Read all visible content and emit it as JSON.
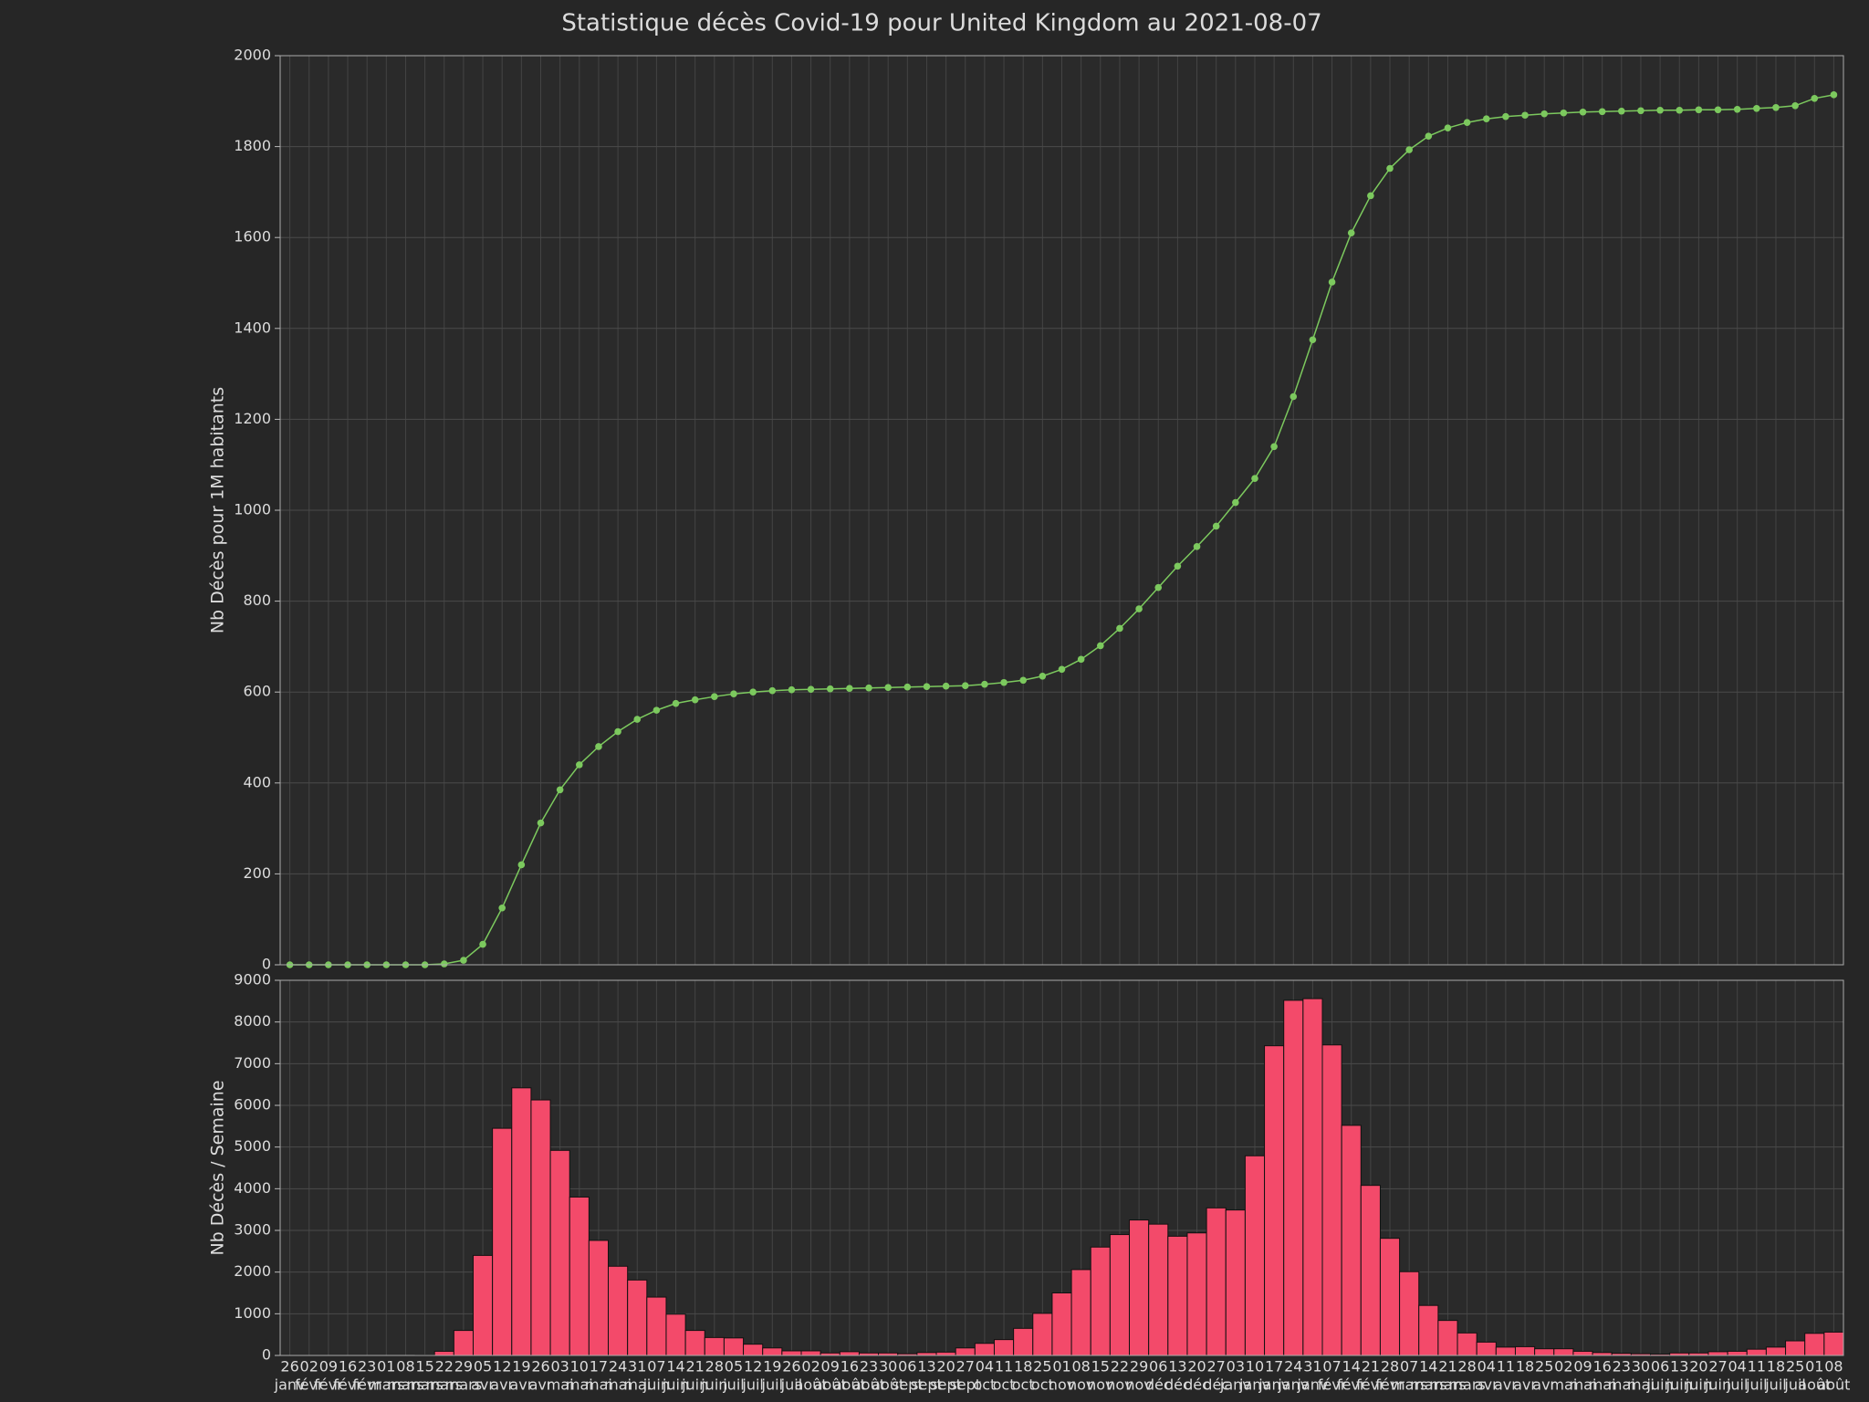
{
  "chart_data": [
    {
      "type": "line",
      "title": "Statistique décès Covid-19 pour United Kingdom au 2021-08-07",
      "y_label": "Nb Décès pour 1M habitants",
      "color": "#7cc95e",
      "ylim": [
        0,
        2000
      ],
      "yticks": [
        0,
        200,
        400,
        600,
        800,
        1000,
        1200,
        1400,
        1600,
        1800,
        2000
      ],
      "grid": true,
      "values": [
        0,
        0,
        0,
        0,
        0,
        0,
        0,
        0,
        2,
        10,
        45,
        125,
        220,
        312,
        385,
        440,
        480,
        513,
        540,
        560,
        575,
        583,
        590,
        596,
        600,
        603,
        605,
        606,
        607,
        608,
        609,
        610,
        611,
        612,
        613,
        614,
        617,
        621,
        626,
        635,
        650,
        672,
        702,
        740,
        783,
        830,
        877,
        920,
        965,
        1017,
        1070,
        1140,
        1250,
        1375,
        1502,
        1610,
        1692,
        1752,
        1793,
        1823,
        1841,
        1853,
        1861,
        1866,
        1869,
        1872,
        1874,
        1876,
        1877,
        1878,
        1879,
        1880,
        1880,
        1881,
        1881,
        1882,
        1884,
        1886,
        1890,
        1906,
        1914
      ]
    },
    {
      "type": "bar",
      "y_label": "Nb Décès / Semaine",
      "color": "#f34a6a",
      "ylim": [
        0,
        9000
      ],
      "yticks": [
        0,
        1000,
        2000,
        3000,
        4000,
        5000,
        6000,
        7000,
        8000,
        9000
      ],
      "grid": true,
      "categories": [
        {
          "day": "26",
          "month": "janv"
        },
        {
          "day": "02",
          "month": "févr"
        },
        {
          "day": "09",
          "month": "févr"
        },
        {
          "day": "16",
          "month": "févr"
        },
        {
          "day": "23",
          "month": "févr"
        },
        {
          "day": "01",
          "month": "mars"
        },
        {
          "day": "08",
          "month": "mars"
        },
        {
          "day": "15",
          "month": "mars"
        },
        {
          "day": "22",
          "month": "mars"
        },
        {
          "day": "29",
          "month": "mars"
        },
        {
          "day": "05",
          "month": "avr"
        },
        {
          "day": "12",
          "month": "avr"
        },
        {
          "day": "19",
          "month": "avr"
        },
        {
          "day": "26",
          "month": "avr"
        },
        {
          "day": "03",
          "month": "mai"
        },
        {
          "day": "10",
          "month": "mai"
        },
        {
          "day": "17",
          "month": "mai"
        },
        {
          "day": "24",
          "month": "mai"
        },
        {
          "day": "31",
          "month": "mai"
        },
        {
          "day": "07",
          "month": "juin"
        },
        {
          "day": "14",
          "month": "juin"
        },
        {
          "day": "21",
          "month": "juin"
        },
        {
          "day": "28",
          "month": "juin"
        },
        {
          "day": "05",
          "month": "juil"
        },
        {
          "day": "12",
          "month": "juil"
        },
        {
          "day": "19",
          "month": "juil"
        },
        {
          "day": "26",
          "month": "juil"
        },
        {
          "day": "02",
          "month": "août"
        },
        {
          "day": "09",
          "month": "août"
        },
        {
          "day": "16",
          "month": "août"
        },
        {
          "day": "23",
          "month": "août"
        },
        {
          "day": "30",
          "month": "août"
        },
        {
          "day": "06",
          "month": "sept"
        },
        {
          "day": "13",
          "month": "sept"
        },
        {
          "day": "20",
          "month": "sept"
        },
        {
          "day": "27",
          "month": "sept"
        },
        {
          "day": "04",
          "month": "oct"
        },
        {
          "day": "11",
          "month": "oct"
        },
        {
          "day": "18",
          "month": "oct"
        },
        {
          "day": "25",
          "month": "oct"
        },
        {
          "day": "01",
          "month": "nov"
        },
        {
          "day": "08",
          "month": "nov"
        },
        {
          "day": "15",
          "month": "nov"
        },
        {
          "day": "22",
          "month": "nov"
        },
        {
          "day": "29",
          "month": "nov"
        },
        {
          "day": "06",
          "month": "déc"
        },
        {
          "day": "13",
          "month": "déc"
        },
        {
          "day": "20",
          "month": "déc"
        },
        {
          "day": "27",
          "month": "déc"
        },
        {
          "day": "03",
          "month": "janv"
        },
        {
          "day": "10",
          "month": "janv"
        },
        {
          "day": "17",
          "month": "janv"
        },
        {
          "day": "24",
          "month": "janv"
        },
        {
          "day": "31",
          "month": "janv"
        },
        {
          "day": "07",
          "month": "févr"
        },
        {
          "day": "14",
          "month": "févr"
        },
        {
          "day": "21",
          "month": "févr"
        },
        {
          "day": "28",
          "month": "févr"
        },
        {
          "day": "07",
          "month": "mars"
        },
        {
          "day": "14",
          "month": "mars"
        },
        {
          "day": "21",
          "month": "mars"
        },
        {
          "day": "28",
          "month": "mars"
        },
        {
          "day": "04",
          "month": "avr"
        },
        {
          "day": "11",
          "month": "avr"
        },
        {
          "day": "18",
          "month": "avr"
        },
        {
          "day": "25",
          "month": "avr"
        },
        {
          "day": "02",
          "month": "mai"
        },
        {
          "day": "09",
          "month": "mai"
        },
        {
          "day": "16",
          "month": "mai"
        },
        {
          "day": "23",
          "month": "mai"
        },
        {
          "day": "30",
          "month": "mai"
        },
        {
          "day": "06",
          "month": "juin"
        },
        {
          "day": "13",
          "month": "juin"
        },
        {
          "day": "20",
          "month": "juin"
        },
        {
          "day": "27",
          "month": "juin"
        },
        {
          "day": "04",
          "month": "juil"
        },
        {
          "day": "11",
          "month": "juil"
        },
        {
          "day": "18",
          "month": "juil"
        },
        {
          "day": "25",
          "month": "juil"
        },
        {
          "day": "01",
          "month": "août"
        },
        {
          "day": "08",
          "month": "août"
        }
      ],
      "values": [
        0,
        0,
        0,
        0,
        0,
        0,
        0,
        10,
        100,
        600,
        2400,
        5450,
        6420,
        6130,
        4920,
        3800,
        2760,
        2140,
        1810,
        1400,
        990,
        600,
        430,
        420,
        270,
        180,
        110,
        110,
        60,
        90,
        60,
        60,
        40,
        70,
        80,
        180,
        290,
        380,
        650,
        1010,
        1500,
        2060,
        2600,
        2900,
        3250,
        3150,
        2860,
        2940,
        3540,
        3490,
        4790,
        7430,
        8520,
        8560,
        7450,
        5520,
        4080,
        2810,
        2010,
        1200,
        840,
        540,
        320,
        200,
        210,
        160,
        160,
        100,
        70,
        50,
        40,
        30,
        60,
        60,
        90,
        100,
        150,
        200,
        350,
        530,
        560
      ]
    }
  ]
}
